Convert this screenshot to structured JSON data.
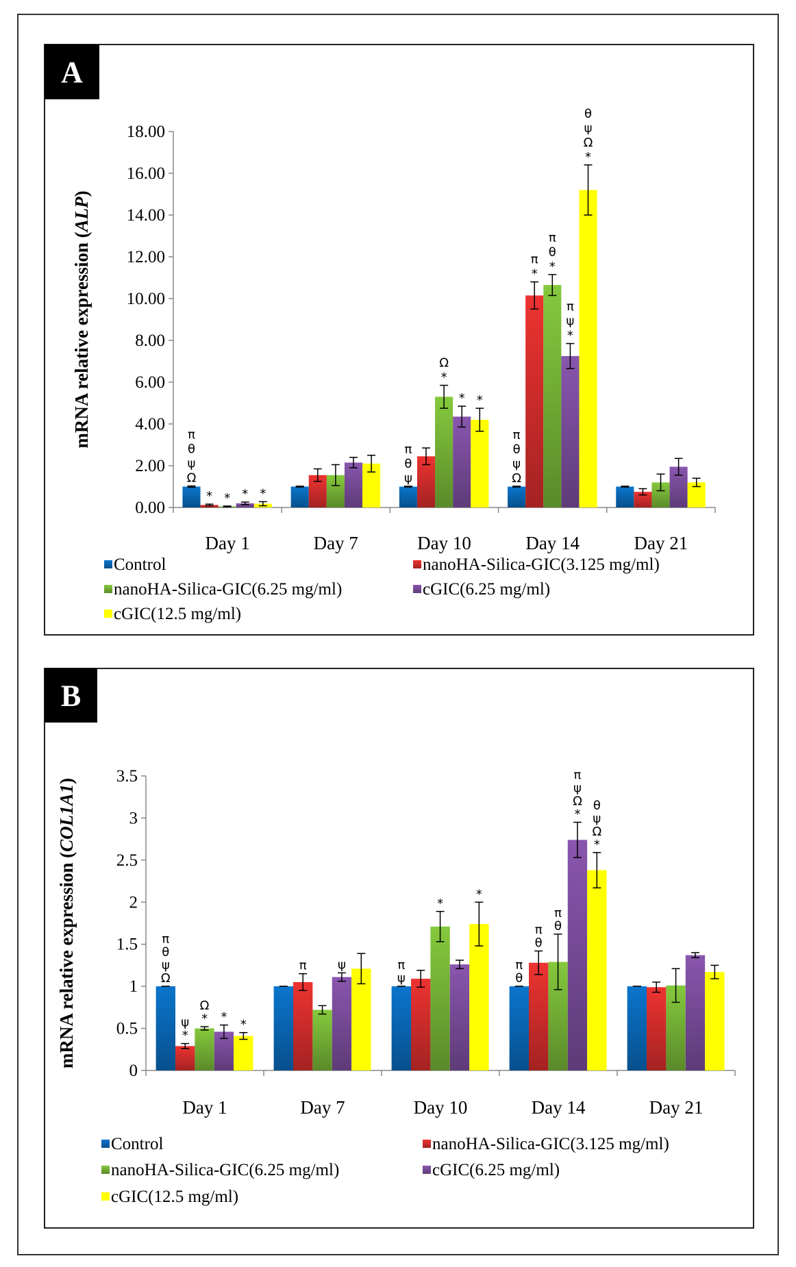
{
  "colors": {
    "Control": "#0a6fc2",
    "nanoHA-Silica-GIC(3.125 mg/ml)": "#e2312f",
    "nanoHA-Silica-GIC(6.25 mg/ml)": "#7fbf3a",
    "cGIC(6.25 mg/ml)": "#8252a6",
    "cGIC(12.5 mg/ml)": "#ffff00"
  },
  "chart_data": [
    {
      "panel_label": "A",
      "type": "bar",
      "ylabel": "mRNA relative expression",
      "ylabel_gene": "ALP",
      "xlabel": "",
      "ylim": [
        0,
        18
      ],
      "yticks": [
        "0.00",
        "2.00",
        "4.00",
        "6.00",
        "8.00",
        "10.00",
        "12.00",
        "14.00",
        "16.00",
        "18.00"
      ],
      "categories": [
        "Day 1",
        "Day 7",
        "Day 10",
        "Day 14",
        "Day 21"
      ],
      "legend_position": "bottom",
      "series": [
        {
          "name": "Control",
          "values": [
            1.0,
            1.0,
            1.0,
            1.0,
            1.0
          ],
          "errors": [
            0.03,
            0.02,
            0.02,
            0.02,
            0.02
          ],
          "annotations": [
            [
              "π",
              "θ",
              "ψ",
              "Ω"
            ],
            [],
            [
              "π",
              "θ",
              "ψ"
            ],
            [
              "π",
              "θ",
              "ψ",
              "Ω"
            ],
            []
          ]
        },
        {
          "name": "nanoHA-Silica-GIC(3.125 mg/ml)",
          "values": [
            0.12,
            1.55,
            2.45,
            10.15,
            0.75
          ],
          "errors": [
            0.04,
            0.3,
            0.4,
            0.65,
            0.15
          ],
          "annotations": [
            [
              "*"
            ],
            [],
            [],
            [
              "π",
              "*"
            ],
            []
          ]
        },
        {
          "name": "nanoHA-Silica-GIC(6.25 mg/ml)",
          "values": [
            0.05,
            1.55,
            5.3,
            10.65,
            1.2
          ],
          "errors": [
            0.02,
            0.5,
            0.55,
            0.5,
            0.4
          ],
          "annotations": [
            [
              "*"
            ],
            [],
            [
              "Ω",
              "*"
            ],
            [
              "π",
              "θ",
              "*"
            ],
            []
          ]
        },
        {
          "name": "cGIC(6.25 mg/ml)",
          "values": [
            0.2,
            2.15,
            4.35,
            7.25,
            1.95
          ],
          "errors": [
            0.06,
            0.25,
            0.5,
            0.6,
            0.4
          ],
          "annotations": [
            [
              "*"
            ],
            [],
            [
              "*"
            ],
            [
              "π",
              "ψ",
              "*"
            ],
            []
          ]
        },
        {
          "name": "cGIC(12.5 mg/ml)",
          "values": [
            0.18,
            2.1,
            4.2,
            15.2,
            1.2
          ],
          "errors": [
            0.1,
            0.4,
            0.55,
            1.2,
            0.2
          ],
          "annotations": [
            [
              "*"
            ],
            [],
            [
              "*"
            ],
            [
              "θ",
              "ψ",
              "Ω",
              "*"
            ],
            []
          ]
        }
      ]
    },
    {
      "panel_label": "B",
      "type": "bar",
      "ylabel": "mRNA relative expression",
      "ylabel_gene": "COL1A1",
      "xlabel": "",
      "ylim": [
        0,
        3.5
      ],
      "yticks": [
        "0",
        "0.5",
        "1",
        "1.5",
        "2",
        "2.5",
        "3",
        "3.5"
      ],
      "categories": [
        "Day 1",
        "Day 7",
        "Day 10",
        "Day 14",
        "Day 21"
      ],
      "legend_position": "bottom",
      "series": [
        {
          "name": "Control",
          "values": [
            1.0,
            1.0,
            1.0,
            1.0,
            1.0
          ],
          "errors": [
            0,
            0,
            0,
            0,
            0
          ],
          "annotations": [
            [
              "π",
              "θ",
              "ψ",
              "Ω"
            ],
            [],
            [
              "π",
              "ψ"
            ],
            [
              "π",
              "θ"
            ],
            []
          ]
        },
        {
          "name": "nanoHA-Silica-GIC(3.125 mg/ml)",
          "values": [
            0.29,
            1.05,
            1.09,
            1.28,
            0.99
          ],
          "errors": [
            0.03,
            0.1,
            0.1,
            0.14,
            0.06
          ],
          "annotations": [
            [
              "ψ",
              "*"
            ],
            [
              "π"
            ],
            [],
            [
              "π",
              "θ"
            ],
            []
          ]
        },
        {
          "name": "nanoHA-Silica-GIC(6.25 mg/ml)",
          "values": [
            0.5,
            0.72,
            1.71,
            1.29,
            1.01
          ],
          "errors": [
            0.02,
            0.05,
            0.18,
            0.33,
            0.2
          ],
          "annotations": [
            [
              "Ω",
              "*"
            ],
            [],
            [
              "*"
            ],
            [
              "π",
              "θ"
            ],
            []
          ]
        },
        {
          "name": "cGIC(6.25 mg/ml)",
          "values": [
            0.46,
            1.11,
            1.26,
            2.74,
            1.37
          ],
          "errors": [
            0.08,
            0.05,
            0.05,
            0.21,
            0.03
          ],
          "annotations": [
            [
              "*"
            ],
            [
              "ψ"
            ],
            [],
            [
              "π",
              "ψ",
              "Ω",
              "*"
            ],
            []
          ]
        },
        {
          "name": "cGIC(12.5 mg/ml)",
          "values": [
            0.41,
            1.21,
            1.74,
            2.38,
            1.17
          ],
          "errors": [
            0.04,
            0.18,
            0.26,
            0.21,
            0.08
          ],
          "annotations": [
            [
              "*"
            ],
            [],
            [
              "*"
            ],
            [
              "θ",
              "ψ",
              "Ω",
              "*"
            ],
            []
          ]
        }
      ]
    }
  ]
}
